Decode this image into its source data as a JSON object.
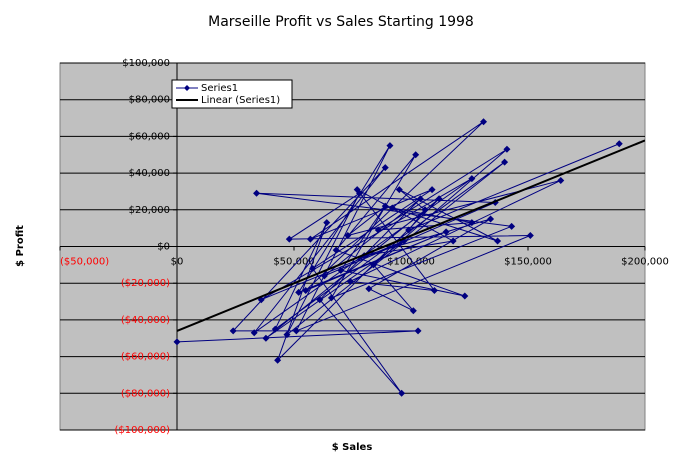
{
  "chart_data": {
    "type": "scatter",
    "title": "Marseille Profit vs Sales Starting 1998",
    "x_label": "$ Sales",
    "y_label": "$ Profit",
    "xlim": [
      -50000,
      200000
    ],
    "ylim": [
      -100000,
      100000
    ],
    "xticks": [
      {
        "value": -50000,
        "label": "($50,000)"
      },
      {
        "value": 0,
        "label": "$0"
      },
      {
        "value": 50000,
        "label": "$50,000"
      },
      {
        "value": 100000,
        "label": "$100,000"
      },
      {
        "value": 150000,
        "label": "$150,000"
      },
      {
        "value": 200000,
        "label": "$200,000"
      }
    ],
    "yticks": [
      {
        "value": -100000,
        "label": "($100,000)"
      },
      {
        "value": -80000,
        "label": "($80,000)"
      },
      {
        "value": -60000,
        "label": "($60,000)"
      },
      {
        "value": -40000,
        "label": "($40,000)"
      },
      {
        "value": -20000,
        "label": "($20,000)"
      },
      {
        "value": 0,
        "label": "$0"
      },
      {
        "value": 20000,
        "label": "$20,000"
      },
      {
        "value": 40000,
        "label": "$40,000"
      },
      {
        "value": 60000,
        "label": "$60,000"
      },
      {
        "value": 80000,
        "label": "$80,000"
      },
      {
        "value": 100000,
        "label": "$100,000"
      }
    ],
    "grid": true,
    "background": "#c0c0c0",
    "legend": "upper left",
    "series": [
      {
        "name": "Series1",
        "color": "#000080",
        "marker": "diamond",
        "x": [
          0,
          103000,
          24000,
          89000,
          33000,
          126000,
          36000,
          97000,
          38000,
          112000,
          43000,
          64000,
          42000,
          140000,
          47000,
          78000,
          48000,
          151000,
          51000,
          91000,
          52000,
          115000,
          55000,
          131000,
          57000,
          109000,
          58000,
          96000,
          61000,
          104000,
          63000,
          136000,
          34000,
          143000,
          66000,
          102000,
          68000,
          123000,
          70000,
          89000,
          73000,
          164000,
          74000,
          110000,
          77000,
          118000,
          80000,
          134000,
          82000,
          101000,
          84000,
          141000,
          86000,
          126000,
          92000,
          137000,
          95000,
          106000,
          99000,
          189000
        ],
        "y": [
          -52000,
          -46000,
          -46000,
          43000,
          -47000,
          37000,
          -29000,
          3000,
          -50000,
          26000,
          -62000,
          13000,
          -45000,
          46000,
          -48000,
          29000,
          4000,
          6000,
          -46000,
          55000,
          -25000,
          8000,
          -24000,
          68000,
          4000,
          31000,
          -12000,
          -80000,
          -29000,
          26000,
          -16000,
          24000,
          29000,
          11000,
          -28000,
          50000,
          -2000,
          -27000,
          -13000,
          22000,
          6000,
          36000,
          -19000,
          -24000,
          31000,
          3000,
          -5000,
          15000,
          -23000,
          -35000,
          -10000,
          53000,
          9000,
          13000,
          21000,
          3000,
          31000,
          20000,
          9000,
          56000
        ]
      },
      {
        "name": "Linear (Series1)",
        "color": "#000000",
        "marker": "none",
        "x": [
          0,
          200000
        ],
        "y": [
          -46000,
          57800
        ]
      }
    ]
  }
}
